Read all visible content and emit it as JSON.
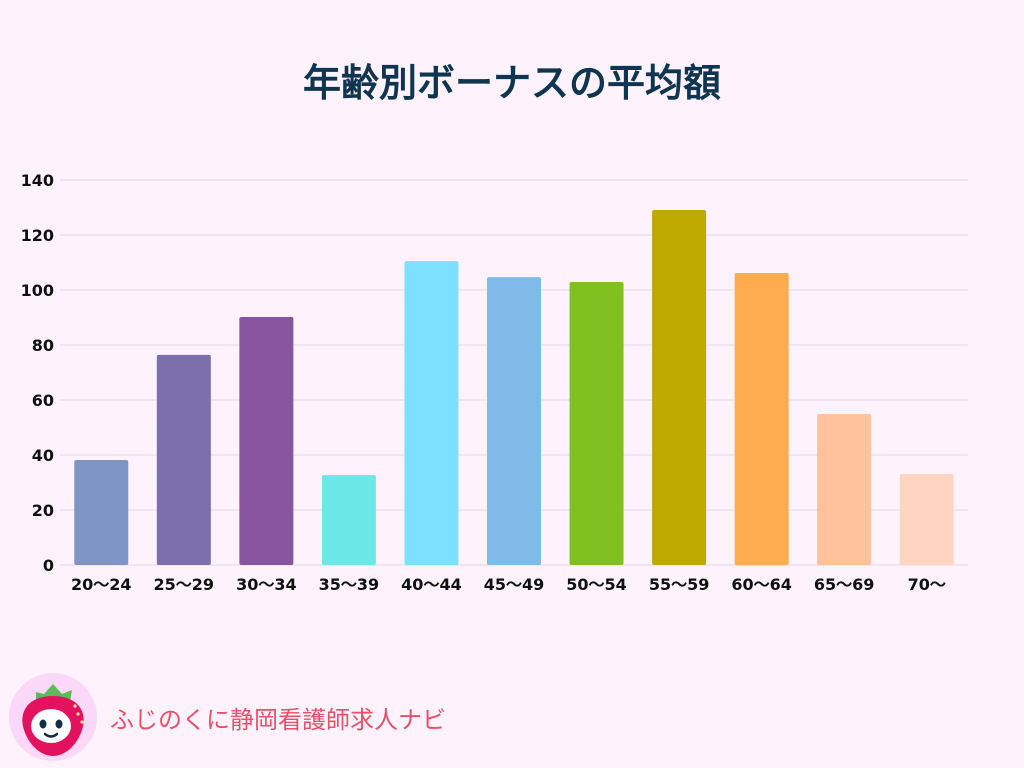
{
  "chart_data": {
    "type": "bar",
    "title": "年齢別ボーナスの平均額",
    "xlabel": "",
    "ylabel": "",
    "categories": [
      "20～24",
      "25～29",
      "30～34",
      "35～39",
      "40～44",
      "45～49",
      "50～54",
      "55～59",
      "60～64",
      "65～69",
      "70～"
    ],
    "values": [
      38.2,
      76.4,
      90.2,
      32.7,
      110.5,
      104.7,
      102.9,
      129.1,
      106.2,
      54.9,
      33.1
    ],
    "colors": [
      "#7f96c4",
      "#7b6fad",
      "#8955a0",
      "#6de6e8",
      "#7de0ff",
      "#80bae8",
      "#80c121",
      "#bfa800",
      "#ffab50",
      "#ffc29c",
      "#ffd5c2"
    ],
    "ylim": [
      0,
      140
    ],
    "yticks": [
      0,
      20,
      40,
      60,
      80,
      100,
      120,
      140
    ],
    "grid": true,
    "legend": "none"
  },
  "brand": {
    "name": "ふじのくに静岡看護師求人ナビ",
    "logo_icon": "strawberry-mascot-icon"
  }
}
